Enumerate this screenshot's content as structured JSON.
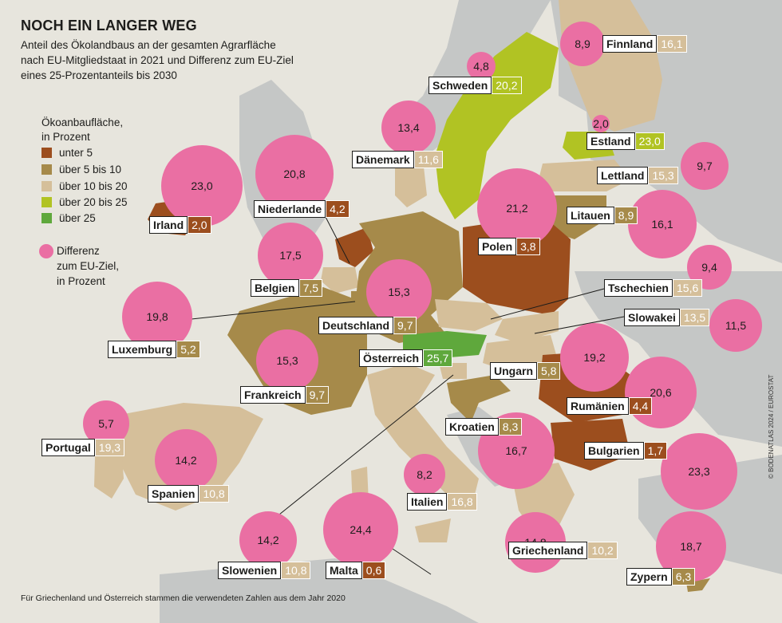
{
  "header": {
    "title": "NOCH EIN LANGER WEG",
    "subtitle_lines": [
      "Anteil des Ökolandbaus an der gesamten Agrarfläche",
      "nach EU-Mitgliedstaat in 2021 und Differenz zum EU-Ziel",
      "eines 25-Prozentanteils bis 2030"
    ]
  },
  "legend": {
    "title_lines": [
      "Ökoanbaufläche,",
      "in Prozent"
    ],
    "classes": [
      {
        "label": "unter 5",
        "color": "#9c4e1e"
      },
      {
        "label": "über 5 bis 10",
        "color": "#a68a4a"
      },
      {
        "label": "über 10 bis 20",
        "color": "#d5bf9a"
      },
      {
        "label": "über 20 bis 25",
        "color": "#b1c323"
      },
      {
        "label": "über 25",
        "color": "#5fa83c"
      }
    ],
    "bubble_lines": [
      "Differenz",
      "zum EU-Ziel,",
      "in Prozent"
    ],
    "bubble_color": "#ea6fa3"
  },
  "countries": [
    {
      "name": "Finnland",
      "share": "16,1",
      "class": 2,
      "gap": "8,9"
    },
    {
      "name": "Schweden",
      "share": "20,2",
      "class": 3,
      "gap": "4,8"
    },
    {
      "name": "Estland",
      "share": "23,0",
      "class": 3,
      "gap": "2,0"
    },
    {
      "name": "Dänemark",
      "share": "11,6",
      "class": 2,
      "gap": "13,4"
    },
    {
      "name": "Lettland",
      "share": "15,3",
      "class": 2,
      "gap": "9,7"
    },
    {
      "name": "Irland",
      "share": "2,0",
      "class": 0,
      "gap": "23,0"
    },
    {
      "name": "Niederlande",
      "share": "4,2",
      "class": 0,
      "gap": "20,8"
    },
    {
      "name": "Litauen",
      "share": "8,9",
      "class": 1,
      "gap": "16,1"
    },
    {
      "name": "Polen",
      "share": "3,8",
      "class": 0,
      "gap": "21,2"
    },
    {
      "name": "Belgien",
      "share": "7,5",
      "class": 1,
      "gap": "17,5"
    },
    {
      "name": "Tschechien",
      "share": "15,6",
      "class": 2,
      "gap": "9,4"
    },
    {
      "name": "Deutschland",
      "share": "9,7",
      "class": 1,
      "gap": "15,3"
    },
    {
      "name": "Slowakei",
      "share": "13,5",
      "class": 2,
      "gap": "11,5"
    },
    {
      "name": "Luxemburg",
      "share": "5,2",
      "class": 1,
      "gap": "19,8"
    },
    {
      "name": "Österreich",
      "share": "25,7",
      "class": 4,
      "gap": null
    },
    {
      "name": "Ungarn",
      "share": "5,8",
      "class": 1,
      "gap": "19,2"
    },
    {
      "name": "Frankreich",
      "share": "9,7",
      "class": 1,
      "gap": "15,3"
    },
    {
      "name": "Rumänien",
      "share": "4,4",
      "class": 0,
      "gap": "20,6"
    },
    {
      "name": "Kroatien",
      "share": "8,3",
      "class": 1,
      "gap": "16,7"
    },
    {
      "name": "Portugal",
      "share": "19,3",
      "class": 2,
      "gap": "5,7"
    },
    {
      "name": "Bulgarien",
      "share": "1,7",
      "class": 0,
      "gap": "23,3"
    },
    {
      "name": "Spanien",
      "share": "10,8",
      "class": 2,
      "gap": "14,2"
    },
    {
      "name": "Italien",
      "share": "16,8",
      "class": 2,
      "gap": "8,2"
    },
    {
      "name": "Griechenland",
      "share": "10,2",
      "class": 2,
      "gap": "14,8"
    },
    {
      "name": "Slowenien",
      "share": "10,8",
      "class": 2,
      "gap": "14,2"
    },
    {
      "name": "Malta",
      "share": "0,6",
      "class": 0,
      "gap": "24,4"
    },
    {
      "name": "Zypern",
      "share": "6,3",
      "class": 1,
      "gap": "18,7"
    }
  ],
  "footnote": "Für Griechenland und Österreich stammen die verwendeten Zahlen aus dem Jahr 2020",
  "credit": "© BODENATLAS 2024 / EUROSTAT"
}
